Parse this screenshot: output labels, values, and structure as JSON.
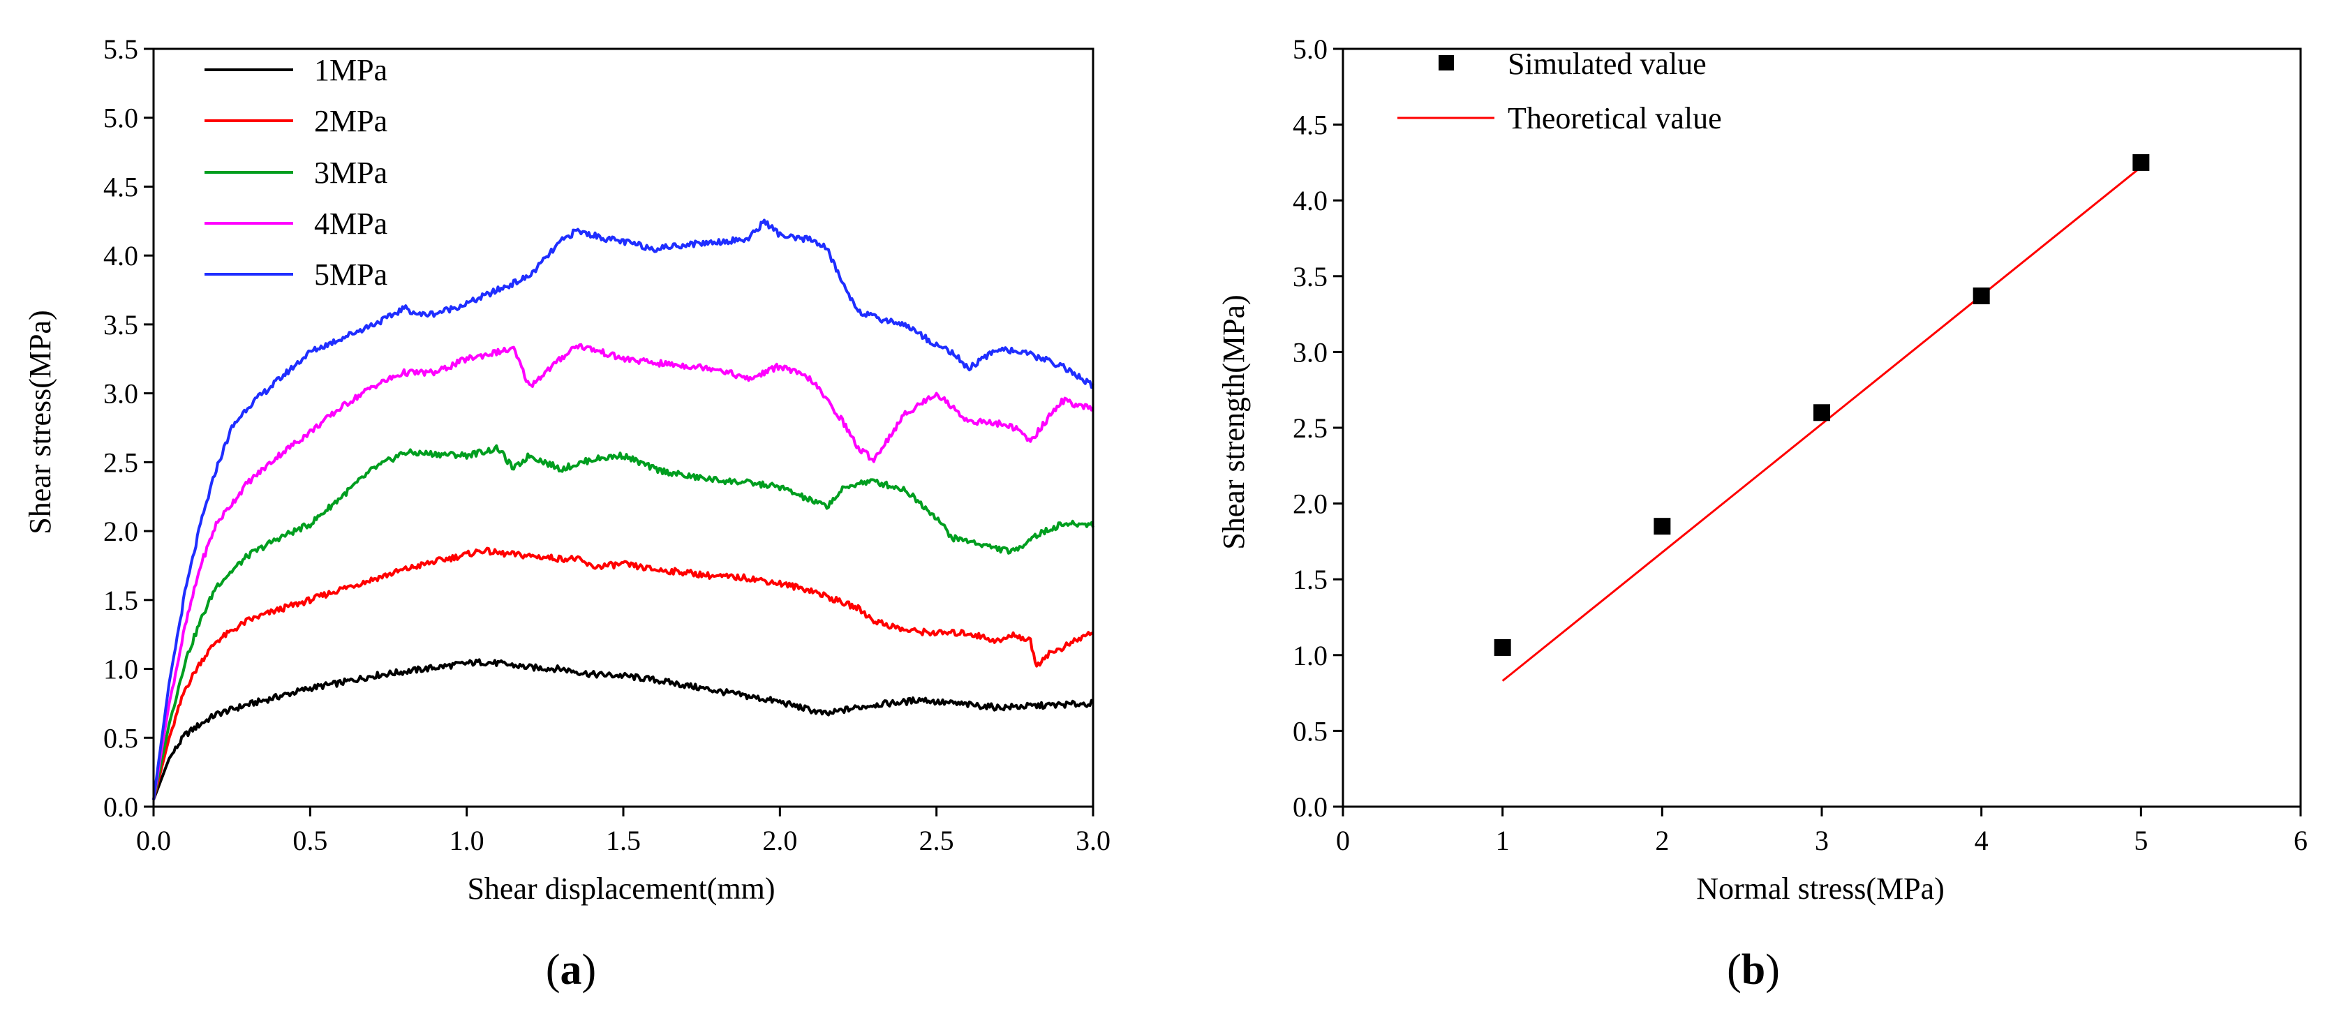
{
  "chart_data": [
    {
      "panel_label": "a",
      "type": "line",
      "xlabel": "Shear displacement(mm)",
      "ylabel": "Shear stress(MPa)",
      "xlim": [
        0.0,
        3.0
      ],
      "ylim": [
        0.0,
        5.5
      ],
      "xticks": [
        0.0,
        0.5,
        1.0,
        1.5,
        2.0,
        2.5,
        3.0
      ],
      "xtick_labels": [
        "0.0",
        "0.5",
        "1.0",
        "1.5",
        "2.0",
        "2.5",
        "3.0"
      ],
      "yticks": [
        0.0,
        0.5,
        1.0,
        1.5,
        2.0,
        2.5,
        3.0,
        3.5,
        4.0,
        4.5,
        5.0,
        5.5
      ],
      "ytick_labels": [
        "0.0",
        "0.5",
        "1.0",
        "1.5",
        "2.0",
        "2.5",
        "3.0",
        "3.5",
        "4.0",
        "4.5",
        "5.0",
        "5.5"
      ],
      "legend_position": "top-left",
      "series": [
        {
          "name": "1MPa",
          "color": "#000000",
          "x": [
            0,
            0.05,
            0.1,
            0.15,
            0.2,
            0.3,
            0.4,
            0.5,
            0.6,
            0.7,
            0.8,
            0.9,
            1.0,
            1.05,
            1.1,
            1.2,
            1.3,
            1.4,
            1.5,
            1.6,
            1.7,
            1.8,
            1.9,
            2.0,
            2.1,
            2.15,
            2.2,
            2.3,
            2.4,
            2.45,
            2.5,
            2.6,
            2.7,
            2.8,
            2.9,
            3.0
          ],
          "y": [
            0.05,
            0.35,
            0.52,
            0.6,
            0.67,
            0.74,
            0.8,
            0.86,
            0.9,
            0.95,
            0.98,
            1.01,
            1.04,
            1.05,
            1.04,
            1.01,
            1.0,
            0.96,
            0.95,
            0.92,
            0.88,
            0.84,
            0.8,
            0.76,
            0.7,
            0.67,
            0.7,
            0.74,
            0.76,
            0.78,
            0.76,
            0.74,
            0.72,
            0.73,
            0.74,
            0.75
          ]
        },
        {
          "name": "2MPa",
          "color": "#ff0000",
          "x": [
            0,
            0.05,
            0.1,
            0.15,
            0.2,
            0.3,
            0.4,
            0.5,
            0.6,
            0.7,
            0.8,
            0.9,
            1.0,
            1.05,
            1.1,
            1.2,
            1.3,
            1.35,
            1.4,
            1.5,
            1.6,
            1.7,
            1.8,
            1.9,
            2.0,
            2.1,
            2.2,
            2.25,
            2.3,
            2.4,
            2.5,
            2.6,
            2.7,
            2.75,
            2.8,
            2.82,
            2.85,
            2.9,
            3.0
          ],
          "y": [
            0.05,
            0.5,
            0.85,
            1.05,
            1.2,
            1.35,
            1.43,
            1.5,
            1.58,
            1.65,
            1.72,
            1.78,
            1.83,
            1.86,
            1.84,
            1.82,
            1.8,
            1.8,
            1.74,
            1.76,
            1.72,
            1.7,
            1.67,
            1.66,
            1.62,
            1.57,
            1.48,
            1.44,
            1.35,
            1.28,
            1.26,
            1.26,
            1.2,
            1.25,
            1.2,
            1.02,
            1.1,
            1.15,
            1.27
          ]
        },
        {
          "name": "3MPa",
          "color": "#009e1f",
          "x": [
            0,
            0.05,
            0.1,
            0.15,
            0.2,
            0.3,
            0.4,
            0.5,
            0.6,
            0.7,
            0.8,
            0.9,
            1.0,
            1.1,
            1.15,
            1.2,
            1.3,
            1.4,
            1.5,
            1.6,
            1.7,
            1.8,
            1.9,
            2.0,
            2.1,
            2.15,
            2.2,
            2.25,
            2.3,
            2.4,
            2.5,
            2.55,
            2.6,
            2.7,
            2.75,
            2.8,
            2.9,
            3.0
          ],
          "y": [
            0.05,
            0.6,
            1.05,
            1.35,
            1.6,
            1.82,
            1.95,
            2.05,
            2.25,
            2.45,
            2.57,
            2.56,
            2.55,
            2.6,
            2.45,
            2.55,
            2.45,
            2.52,
            2.55,
            2.45,
            2.4,
            2.37,
            2.35,
            2.32,
            2.22,
            2.18,
            2.3,
            2.35,
            2.36,
            2.3,
            2.1,
            1.95,
            1.93,
            1.87,
            1.85,
            1.95,
            2.05,
            2.05
          ]
        },
        {
          "name": "4MPa",
          "color": "#ff00ff",
          "x": [
            0,
            0.05,
            0.1,
            0.15,
            0.2,
            0.3,
            0.4,
            0.5,
            0.6,
            0.7,
            0.8,
            0.9,
            1.0,
            1.1,
            1.15,
            1.2,
            1.3,
            1.35,
            1.4,
            1.5,
            1.6,
            1.7,
            1.8,
            1.9,
            2.0,
            2.1,
            2.2,
            2.25,
            2.3,
            2.4,
            2.5,
            2.6,
            2.7,
            2.75,
            2.8,
            2.9,
            3.0
          ],
          "y": [
            0.05,
            0.75,
            1.3,
            1.75,
            2.05,
            2.35,
            2.55,
            2.72,
            2.9,
            3.05,
            3.15,
            3.15,
            3.25,
            3.3,
            3.32,
            3.05,
            3.25,
            3.35,
            3.32,
            3.25,
            3.22,
            3.2,
            3.18,
            3.1,
            3.2,
            3.1,
            2.8,
            2.6,
            2.52,
            2.85,
            3.0,
            2.8,
            2.78,
            2.75,
            2.65,
            2.95,
            2.88
          ]
        },
        {
          "name": "5MPa",
          "color": "#1f2eff",
          "x": [
            0,
            0.05,
            0.1,
            0.15,
            0.2,
            0.25,
            0.3,
            0.4,
            0.5,
            0.6,
            0.7,
            0.75,
            0.8,
            0.85,
            0.9,
            1.0,
            1.1,
            1.2,
            1.3,
            1.35,
            1.4,
            1.45,
            1.5,
            1.6,
            1.7,
            1.8,
            1.9,
            1.95,
            2.0,
            2.05,
            2.1,
            2.15,
            2.2,
            2.25,
            2.3,
            2.4,
            2.5,
            2.55,
            2.6,
            2.65,
            2.7,
            2.8,
            2.9,
            3.0
          ],
          "y": [
            0.05,
            0.9,
            1.55,
            2.05,
            2.45,
            2.75,
            2.9,
            3.1,
            3.3,
            3.4,
            3.5,
            3.55,
            3.62,
            3.57,
            3.58,
            3.65,
            3.75,
            3.85,
            4.1,
            4.18,
            4.15,
            4.12,
            4.1,
            4.05,
            4.08,
            4.1,
            4.12,
            4.25,
            4.15,
            4.12,
            4.12,
            4.05,
            3.8,
            3.6,
            3.55,
            3.5,
            3.35,
            3.3,
            3.18,
            3.25,
            3.33,
            3.28,
            3.2,
            3.05
          ]
        }
      ]
    },
    {
      "panel_label": "b",
      "type": "scatter",
      "xlabel": "Normal stress(MPa)",
      "ylabel": "Shear strength(MPa)",
      "xlim": [
        0,
        6
      ],
      "ylim": [
        0.0,
        5.0
      ],
      "xticks": [
        0,
        1,
        2,
        3,
        4,
        5,
        6
      ],
      "xtick_labels": [
        "0",
        "1",
        "2",
        "3",
        "4",
        "5",
        "6"
      ],
      "yticks": [
        0.0,
        0.5,
        1.0,
        1.5,
        2.0,
        2.5,
        3.0,
        3.5,
        4.0,
        4.5,
        5.0
      ],
      "ytick_labels": [
        "0.0",
        "0.5",
        "1.0",
        "1.5",
        "2.0",
        "2.5",
        "3.0",
        "3.5",
        "4.0",
        "4.5",
        "5.0"
      ],
      "legend_position": "top-left",
      "series": [
        {
          "name": "Simulated value",
          "kind": "marker",
          "marker": "square",
          "color": "#000000",
          "x": [
            1,
            2,
            3,
            4,
            5
          ],
          "y": [
            1.05,
            1.85,
            2.6,
            3.37,
            4.25
          ]
        },
        {
          "name": "Theoretical value",
          "kind": "line",
          "color": "#ff0000",
          "x": [
            1,
            5
          ],
          "y": [
            0.83,
            4.22
          ]
        }
      ]
    }
  ]
}
